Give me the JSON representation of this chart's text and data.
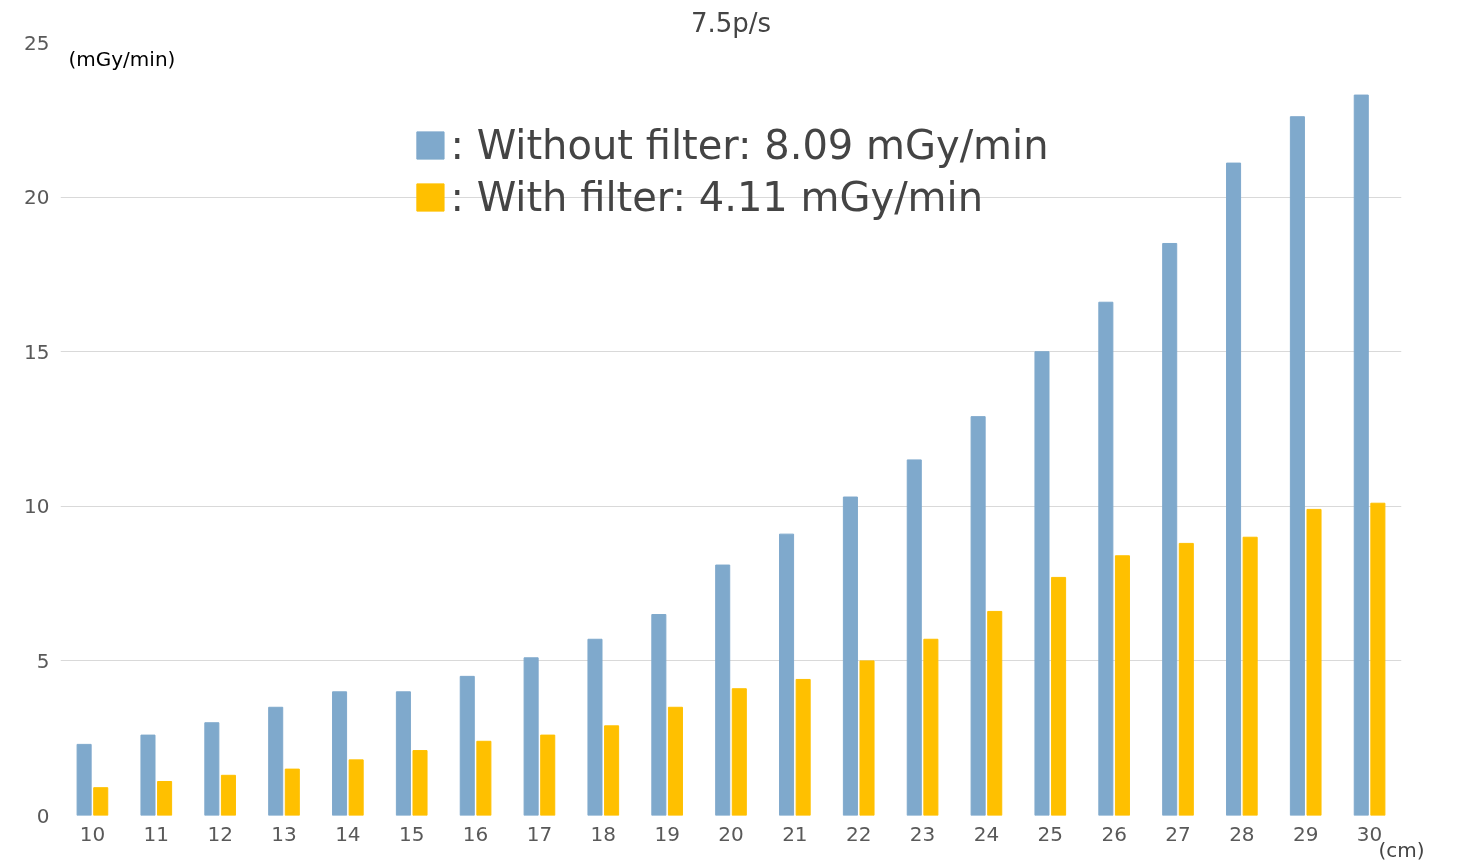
{
  "chart_data": {
    "type": "bar",
    "title": "7.5p/s",
    "ylabel": "(mGy/min)",
    "xlabel": "(cm)",
    "categories": [
      "10",
      "11",
      "12",
      "13",
      "14",
      "15",
      "16",
      "17",
      "18",
      "19",
      "20",
      "21",
      "22",
      "23",
      "24",
      "25",
      "26",
      "27",
      "28",
      "29",
      "30"
    ],
    "series": [
      {
        "name": ": Without filter: 8.09 mGy/min",
        "color": "#7fa9cc",
        "values": [
          2.3,
          2.6,
          3.0,
          3.5,
          4.0,
          4.0,
          4.5,
          5.1,
          5.7,
          6.5,
          8.1,
          9.1,
          10.3,
          11.5,
          12.9,
          15.0,
          16.6,
          18.5,
          21.1,
          22.6,
          23.3
        ]
      },
      {
        "name": ": With filter: 4.11 mGy/min",
        "color": "#ffc000",
        "values": [
          0.9,
          1.1,
          1.3,
          1.5,
          1.8,
          2.1,
          2.4,
          2.6,
          2.9,
          3.5,
          4.1,
          4.4,
          5.0,
          5.7,
          6.6,
          7.7,
          8.4,
          8.8,
          9.0,
          9.9,
          10.1
        ]
      }
    ],
    "ylim": [
      0,
      25
    ],
    "yticks": [
      0,
      5,
      10,
      15,
      20,
      25
    ],
    "grid": "y",
    "legend": "top"
  }
}
